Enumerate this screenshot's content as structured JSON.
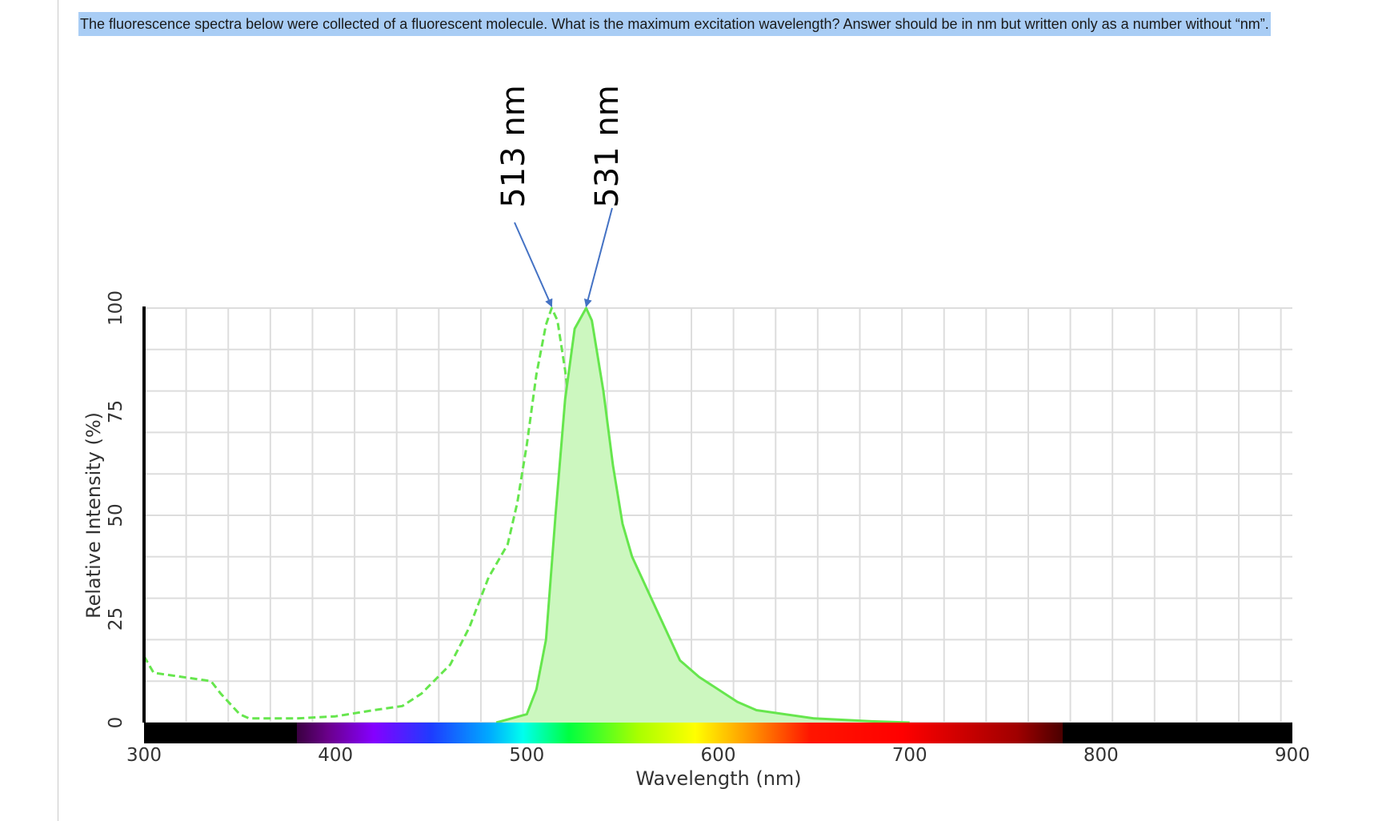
{
  "question": {
    "text": "The fluorescence spectra below were collected of a fluorescent molecule.  What is the maximum excitation wavelength?  Answer should be in nm but written only as a number without “nm”."
  },
  "chart_data": {
    "type": "line",
    "title": "",
    "xlabel": "Wavelength (nm)",
    "ylabel": "Relative Intensity (%)",
    "xlim": [
      300,
      900
    ],
    "ylim": [
      0,
      100
    ],
    "x_ticks": [
      300,
      400,
      500,
      600,
      700,
      800,
      900
    ],
    "y_ticks": [
      0,
      25,
      50,
      75,
      100
    ],
    "x_grid_step": 22,
    "grid": true,
    "legend": "none",
    "spectrum_bar": true,
    "series": [
      {
        "style": "dashed",
        "filled": false,
        "color": "#66e64d",
        "x": [
          300,
          305,
          320,
          335,
          340,
          350,
          355,
          380,
          400,
          420,
          435,
          445,
          460,
          470,
          480,
          490,
          495,
          500,
          505,
          510,
          513,
          516,
          520,
          525,
          530,
          535,
          540,
          545,
          550,
          556,
          563,
          567
        ],
        "y": [
          16,
          12,
          11,
          10,
          7,
          2,
          1,
          1,
          1.5,
          3,
          4,
          7,
          14,
          23,
          35,
          43,
          53,
          67,
          84,
          96,
          100,
          97,
          85,
          66,
          44,
          28,
          13,
          5,
          3,
          1.5,
          0.5,
          0
        ]
      },
      {
        "style": "solid",
        "filled": true,
        "color": "#66e64d",
        "fill_color": "#ccf7bf",
        "x": [
          484,
          500,
          505,
          510,
          515,
          520,
          525,
          531,
          534,
          540,
          545,
          550,
          555,
          565,
          580,
          590,
          610,
          620,
          650,
          680,
          700
        ],
        "y": [
          0,
          2,
          8,
          20,
          50,
          78,
          95,
          100,
          97,
          80,
          62,
          48,
          40,
          30,
          15,
          11,
          5,
          3,
          1,
          0.3,
          0
        ]
      }
    ],
    "annotations": [
      {
        "text": "513 nm",
        "x": 513
      },
      {
        "text": "531 nm",
        "x": 531
      }
    ],
    "colors": {
      "grid": "#dddddd",
      "axis": "#000000",
      "arrow": "#4472c4"
    }
  }
}
